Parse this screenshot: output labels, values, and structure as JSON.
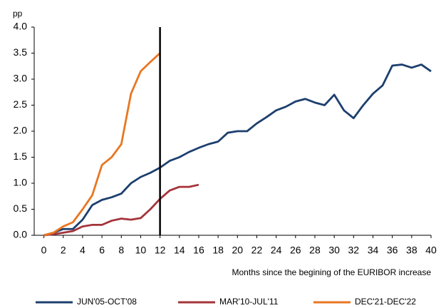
{
  "chart_data": {
    "type": "line",
    "y_unit_label": "pp",
    "x_label": "Months since the begining of the EURIBOR increase",
    "x": [
      0,
      1,
      2,
      3,
      4,
      5,
      6,
      7,
      8,
      9,
      10,
      11,
      12,
      13,
      14,
      15,
      16,
      17,
      18,
      19,
      20,
      21,
      22,
      23,
      24,
      25,
      26,
      27,
      28,
      29,
      30,
      31,
      32,
      33,
      34,
      35,
      36,
      37,
      38,
      39,
      40
    ],
    "series": [
      {
        "name": "JUN'05-OCT'08",
        "color": "#1c3f6e",
        "values": [
          0,
          0.05,
          0.12,
          0.12,
          0.3,
          0.58,
          0.68,
          0.73,
          0.8,
          1.0,
          1.12,
          1.2,
          1.3,
          1.43,
          1.5,
          1.6,
          1.68,
          1.75,
          1.8,
          1.97,
          2.0,
          2.0,
          2.15,
          2.27,
          2.4,
          2.47,
          2.57,
          2.62,
          2.55,
          2.5,
          2.7,
          2.4,
          2.25,
          2.5,
          2.72,
          2.88,
          3.26,
          3.28,
          3.22,
          3.28,
          3.15
        ]
      },
      {
        "name": "MAR'10-JUL'11",
        "color": "#a4343a",
        "values": [
          0,
          0.02,
          0.05,
          0.08,
          0.17,
          0.2,
          0.2,
          0.28,
          0.32,
          0.3,
          0.33,
          0.5,
          0.7,
          0.86,
          0.93,
          0.93,
          0.97,
          null,
          null,
          null,
          null,
          null,
          null,
          null,
          null,
          null,
          null,
          null,
          null,
          null,
          null,
          null,
          null,
          null,
          null,
          null,
          null,
          null,
          null,
          null,
          null
        ]
      },
      {
        "name": "DEC'21-DEC'22",
        "color": "#e87722",
        "values": [
          0,
          0.05,
          0.17,
          0.25,
          0.5,
          0.77,
          1.35,
          1.5,
          1.75,
          2.72,
          3.15,
          3.33,
          3.5,
          null,
          null,
          null,
          null,
          null,
          null,
          null,
          null,
          null,
          null,
          null,
          null,
          null,
          null,
          null,
          null,
          null,
          null,
          null,
          null,
          null,
          null,
          null,
          null,
          null,
          null,
          null,
          null
        ]
      }
    ],
    "vline": 12,
    "xlim": [
      -1,
      40
    ],
    "xticks": [
      0,
      2,
      4,
      6,
      8,
      10,
      12,
      14,
      16,
      18,
      20,
      22,
      24,
      26,
      28,
      30,
      32,
      34,
      36,
      38,
      40
    ],
    "ylim": [
      0,
      4
    ],
    "yticks": [
      {
        "value": 0,
        "label": "0.0"
      },
      {
        "value": 0.5,
        "label": "0.5"
      },
      {
        "value": 1,
        "label": "1.0"
      },
      {
        "value": 1.5,
        "label": "1.5"
      },
      {
        "value": 2,
        "label": "2.0"
      },
      {
        "value": 2.5,
        "label": "2.5"
      },
      {
        "value": 3,
        "label": "3.0"
      },
      {
        "value": 3.5,
        "label": "3.5"
      },
      {
        "value": 4,
        "label": "4.0"
      }
    ],
    "legend": "bottom",
    "grid": false
  }
}
